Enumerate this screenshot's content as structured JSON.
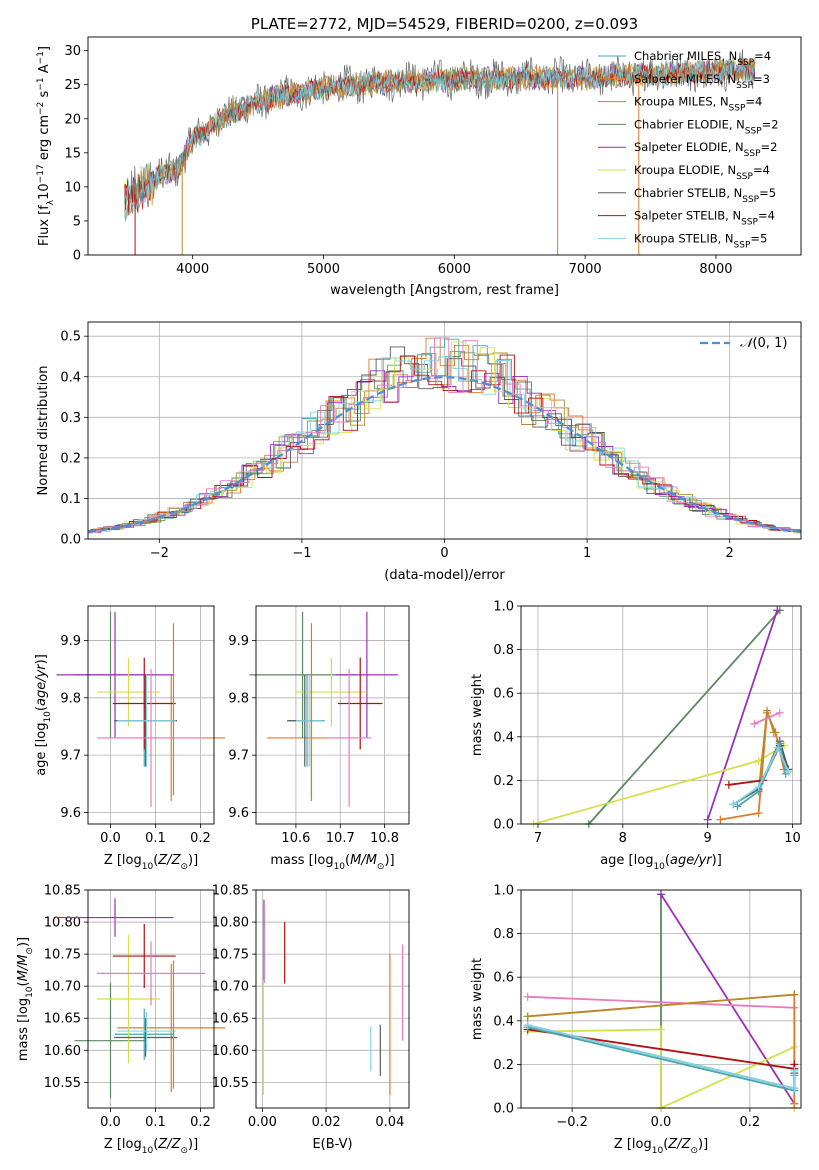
{
  "title": "PLATE=2772, MJD=54529, FIBERID=0200, z=0.093",
  "colors": {
    "Chabrier MILES": "#4aa5ad",
    "Salpeter MILES": "#e07b2d",
    "Kroupa MILES": "#b88a2a",
    "Chabrier ELODIE": "#5a8a60",
    "Salpeter ELODIE": "#9b30b8",
    "Kroupa ELODIE": "#d4e04a",
    "Chabrier STELIB": "#5a5a5a",
    "Salpeter STELIB": "#b01010",
    "Kroupa STELIB": "#80d4e8",
    "pink": "#e87ac0",
    "gaussian": "#4a90d9"
  },
  "chart_data": [
    {
      "id": "spectrum",
      "type": "line",
      "xlabel": "wavelength [Angstrom, rest frame]",
      "ylabel": "Flux [f_λ10^-17 erg cm^-2 s^-1 A^-1]",
      "xlim": [
        3200,
        8650
      ],
      "ylim": [
        0,
        32
      ],
      "xticks": [
        4000,
        5000,
        6000,
        7000,
        8000
      ],
      "yticks": [
        0,
        5,
        10,
        15,
        20,
        25,
        30
      ],
      "grid": false,
      "legend_position": "top-right",
      "legend": [
        {
          "name": "Chabrier MILES",
          "nssp": "4"
        },
        {
          "name": "Salpeter MILES",
          "nssp": "3"
        },
        {
          "name": "Kroupa MILES",
          "nssp": "4"
        },
        {
          "name": "Chabrier ELODIE",
          "nssp": "2"
        },
        {
          "name": "Salpeter ELODIE",
          "nssp": "2"
        },
        {
          "name": "Kroupa ELODIE",
          "nssp": "4"
        },
        {
          "name": "Chabrier STELIB",
          "nssp": "5"
        },
        {
          "name": "Salpeter STELIB",
          "nssp": "4"
        },
        {
          "name": "Kroupa STELIB",
          "nssp": "5"
        }
      ],
      "continuum": [
        [
          3500,
          8
        ],
        [
          3700,
          11
        ],
        [
          3900,
          13
        ],
        [
          4000,
          17
        ],
        [
          4300,
          21
        ],
        [
          4600,
          23
        ],
        [
          5000,
          24.5
        ],
        [
          5500,
          25.5
        ],
        [
          6000,
          25.8
        ],
        [
          6500,
          26
        ],
        [
          7000,
          26
        ],
        [
          7500,
          26.5
        ],
        [
          8000,
          27
        ],
        [
          8300,
          27.2
        ]
      ]
    },
    {
      "id": "residuals",
      "type": "histogram",
      "xlabel": "(data-model)/error",
      "ylabel": "Normed distribution",
      "xlim": [
        -2.5,
        2.5
      ],
      "ylim": [
        0,
        0.535
      ],
      "xticks": [
        -2,
        -1,
        0,
        1,
        2
      ],
      "yticks": [
        0.0,
        0.1,
        0.2,
        0.3,
        0.4,
        0.5
      ],
      "grid": true,
      "legend_position": "top-right",
      "legend": [
        "𝒩(0, 1)"
      ]
    },
    {
      "id": "age-vs-Z",
      "type": "errorbar",
      "xlabel": "Z [log10(Z/Z⊙)]",
      "ylabel": "age  [log10(age/yr)]",
      "xlim": [
        -0.05,
        0.23
      ],
      "ylim": [
        9.58,
        9.96
      ],
      "xticks": [
        0.0,
        0.1,
        0.2
      ],
      "yticks": [
        9.6,
        9.7,
        9.8,
        9.9
      ],
      "grid": true,
      "points": [
        {
          "c": "Chabrier MILES",
          "x": 0.075,
          "xerr": 0.065,
          "y": 9.76,
          "yerr": 0.08
        },
        {
          "c": "Salpeter MILES",
          "x": 0.135,
          "xerr": 0.12,
          "y": 9.73,
          "yerr": 0.11
        },
        {
          "c": "Chabrier ELODIE",
          "x": 0.0,
          "xerr": 0.08,
          "y": 9.84,
          "yerr": 0.11
        },
        {
          "c": "Salpeter ELODIE",
          "x": 0.01,
          "xerr": 0.13,
          "y": 9.84,
          "yerr": 0.11
        },
        {
          "c": "Kroupa ELODIE",
          "x": 0.04,
          "xerr": 0.07,
          "y": 9.81,
          "yerr": 0.06
        },
        {
          "c": "Chabrier STELIB",
          "x": 0.078,
          "xerr": 0.07,
          "y": 9.76,
          "yerr": 0.08
        },
        {
          "c": "Salpeter STELIB",
          "x": 0.075,
          "xerr": 0.07,
          "y": 9.79,
          "yerr": 0.08
        },
        {
          "c": "Kroupa STELIB",
          "x": 0.08,
          "xerr": 0.065,
          "y": 9.76,
          "yerr": 0.08
        },
        {
          "c": "pink",
          "x": 0.09,
          "xerr": 0.12,
          "y": 9.73,
          "yerr": 0.12
        },
        {
          "c": "Kroupa MILES",
          "x": 0.14,
          "xerr": 0.0,
          "y": 9.78,
          "yerr": 0.15
        }
      ]
    },
    {
      "id": "age-vs-mass",
      "type": "errorbar",
      "xlabel": "mass [log10(M/M⊙)]",
      "ylabel": "",
      "xlim": [
        10.51,
        10.855
      ],
      "ylim": [
        9.58,
        9.96
      ],
      "xticks": [
        10.6,
        10.7,
        10.8
      ],
      "yticks": [
        9.6,
        9.7,
        9.8,
        9.9
      ],
      "grid": true,
      "points": [
        {
          "c": "Chabrier MILES",
          "x": 10.625,
          "xerr": 0.04,
          "y": 9.76,
          "yerr": 0.08
        },
        {
          "c": "Salpeter MILES",
          "x": 10.635,
          "xerr": 0.1,
          "y": 9.73,
          "yerr": 0.11
        },
        {
          "c": "Chabrier ELODIE",
          "x": 10.615,
          "xerr": 0.12,
          "y": 9.84,
          "yerr": 0.11
        },
        {
          "c": "Salpeter ELODIE",
          "x": 10.76,
          "xerr": 0.07,
          "y": 9.84,
          "yerr": 0.11
        },
        {
          "c": "Kroupa ELODIE",
          "x": 10.68,
          "xerr": 0.08,
          "y": 9.81,
          "yerr": 0.06
        },
        {
          "c": "Chabrier STELIB",
          "x": 10.62,
          "xerr": 0.04,
          "y": 9.76,
          "yerr": 0.08
        },
        {
          "c": "Salpeter STELIB",
          "x": 10.745,
          "xerr": 0.05,
          "y": 9.79,
          "yerr": 0.08
        },
        {
          "c": "Kroupa STELIB",
          "x": 10.63,
          "xerr": 0.03,
          "y": 9.76,
          "yerr": 0.08
        },
        {
          "c": "pink",
          "x": 10.72,
          "xerr": 0.05,
          "y": 9.73,
          "yerr": 0.12
        },
        {
          "c": "Kroupa MILES",
          "x": 10.635,
          "xerr": 0.0,
          "y": 9.78,
          "yerr": 0.15
        }
      ]
    },
    {
      "id": "weight-vs-age",
      "type": "line",
      "xlabel": "age  [log10(age/yr)]",
      "ylabel": "mass weight",
      "xlim": [
        6.8,
        10.1
      ],
      "ylim": [
        0,
        1.0
      ],
      "xticks": [
        7,
        8,
        9,
        10
      ],
      "yticks": [
        0.0,
        0.2,
        0.4,
        0.6,
        0.8,
        1.0
      ],
      "grid": true,
      "series": [
        {
          "c": "Chabrier ELODIE",
          "x": [
            7.6,
            9.85
          ],
          "y": [
            0.0,
            0.98
          ]
        },
        {
          "c": "Salpeter ELODIE",
          "x": [
            9.0,
            9.82
          ],
          "y": [
            0.02,
            0.98
          ]
        },
        {
          "c": "Kroupa ELODIE",
          "x": [
            6.95,
            9.6,
            9.9
          ],
          "y": [
            0.0,
            0.29,
            0.36
          ]
        },
        {
          "c": "Salpeter MILES",
          "x": [
            9.15,
            9.6,
            9.7,
            9.8,
            9.9
          ],
          "y": [
            0.02,
            0.05,
            0.51,
            0.42,
            0.25
          ]
        },
        {
          "c": "Kroupa MILES",
          "x": [
            9.6,
            9.7,
            9.78
          ],
          "y": [
            0.15,
            0.52,
            0.42
          ]
        },
        {
          "c": "pink",
          "x": [
            9.55,
            9.85
          ],
          "y": [
            0.46,
            0.51
          ]
        },
        {
          "c": "Salpeter STELIB",
          "x": [
            9.25,
            9.65,
            9.85,
            9.95
          ],
          "y": [
            0.18,
            0.2,
            0.36,
            0.25
          ]
        },
        {
          "c": "Chabrier STELIB",
          "x": [
            9.3,
            9.6,
            9.85,
            9.95
          ],
          "y": [
            0.09,
            0.16,
            0.38,
            0.25
          ]
        },
        {
          "c": "Chabrier MILES",
          "x": [
            9.35,
            9.6,
            9.85,
            9.92
          ],
          "y": [
            0.08,
            0.15,
            0.37,
            0.23
          ]
        },
        {
          "c": "Kroupa STELIB",
          "x": [
            9.3,
            9.6,
            9.83,
            9.95
          ],
          "y": [
            0.09,
            0.17,
            0.35,
            0.24
          ]
        }
      ]
    },
    {
      "id": "mass-vs-Z",
      "type": "errorbar",
      "xlabel": "Z [log10(Z/Z⊙)]",
      "ylabel": "mass [log10(M/M⊙)]",
      "xlim": [
        -0.05,
        0.23
      ],
      "ylim": [
        10.51,
        10.85
      ],
      "xticks": [
        0.0,
        0.1,
        0.2
      ],
      "yticks": [
        10.55,
        10.6,
        10.65,
        10.7,
        10.75,
        10.8,
        10.85
      ],
      "grid": true,
      "points": [
        {
          "c": "Chabrier MILES",
          "x": 0.075,
          "xerr": 0.065,
          "y": 10.625,
          "yerr": 0.04
        },
        {
          "c": "Salpeter MILES",
          "x": 0.135,
          "xerr": 0.12,
          "y": 10.635,
          "yerr": 0.1
        },
        {
          "c": "Chabrier ELODIE",
          "x": 0.0,
          "xerr": 0.08,
          "y": 10.615,
          "yerr": 0.09
        },
        {
          "c": "Salpeter ELODIE",
          "x": 0.01,
          "xerr": 0.13,
          "y": 10.807,
          "yerr": 0.03
        },
        {
          "c": "Kroupa ELODIE",
          "x": 0.04,
          "xerr": 0.07,
          "y": 10.68,
          "yerr": 0.1
        },
        {
          "c": "Chabrier STELIB",
          "x": 0.078,
          "xerr": 0.07,
          "y": 10.62,
          "yerr": 0.03
        },
        {
          "c": "Salpeter STELIB",
          "x": 0.075,
          "xerr": 0.07,
          "y": 10.747,
          "yerr": 0.05
        },
        {
          "c": "Kroupa STELIB",
          "x": 0.08,
          "xerr": 0.065,
          "y": 10.63,
          "yerr": 0.03
        },
        {
          "c": "pink",
          "x": 0.09,
          "xerr": 0.12,
          "y": 10.72,
          "yerr": 0.05
        },
        {
          "c": "Kroupa MILES",
          "x": 0.14,
          "xerr": 0.0,
          "y": 10.64,
          "yerr": 0.1
        }
      ]
    },
    {
      "id": "mass-vs-ebv",
      "type": "errorbar",
      "xlabel": "E(B-V)",
      "ylabel": "",
      "xlim": [
        -0.002,
        0.046
      ],
      "ylim": [
        10.51,
        10.85
      ],
      "xticks": [
        0.0,
        0.02,
        0.04
      ],
      "yticks": [
        10.55,
        10.6,
        10.65,
        10.7,
        10.75,
        10.8,
        10.85
      ],
      "grid": true,
      "points": [
        {
          "c": "Salpeter ELODIE",
          "x": 0.0005,
          "xerr": 0.0,
          "y": 10.77,
          "yerr": 0.065
        },
        {
          "c": "Kroupa ELODIE",
          "x": 0.0003,
          "xerr": 0.0,
          "y": 10.62,
          "yerr": 0.09
        },
        {
          "c": "Salpeter STELIB",
          "x": 0.007,
          "xerr": 0.0,
          "y": 10.752,
          "yerr": 0.048
        },
        {
          "c": "Kroupa STELIB",
          "x": 0.034,
          "xerr": 0.0,
          "y": 10.602,
          "yerr": 0.035
        },
        {
          "c": "Chabrier STELIB",
          "x": 0.037,
          "xerr": 0.0,
          "y": 10.6,
          "yerr": 0.04
        },
        {
          "c": "Salpeter MILES",
          "x": 0.04,
          "xerr": 0.0,
          "y": 10.64,
          "yerr": 0.11
        },
        {
          "c": "pink",
          "x": 0.044,
          "xerr": 0.0,
          "y": 10.69,
          "yerr": 0.075
        }
      ]
    },
    {
      "id": "weight-vs-Z",
      "type": "line",
      "xlabel": "Z [log10(Z/Z⊙)]",
      "ylabel": "mass weight",
      "xlim": [
        -0.315,
        0.315
      ],
      "ylim": [
        0,
        1.0
      ],
      "xticks": [
        -0.2,
        0.0,
        0.2
      ],
      "yticks": [
        0.0,
        0.2,
        0.4,
        0.6,
        0.8,
        1.0
      ],
      "grid": true,
      "series": [
        {
          "c": "Chabrier ELODIE",
          "x": [
            0.0,
            0.0
          ],
          "y": [
            0.0,
            0.98
          ]
        },
        {
          "c": "Salpeter ELODIE",
          "x": [
            0.0,
            0.3
          ],
          "y": [
            0.98,
            0.02
          ]
        },
        {
          "c": "Kroupa ELODIE",
          "x": [
            -0.3,
            0.0,
            0.0,
            0.3,
            0.3
          ],
          "y": [
            0.35,
            0.36,
            0.0,
            0.28,
            0.0
          ]
        },
        {
          "c": "pink",
          "x": [
            -0.3,
            0.3
          ],
          "y": [
            0.51,
            0.46
          ]
        },
        {
          "c": "Salpeter MILES",
          "x": [
            -0.3,
            0.3,
            0.3
          ],
          "y": [
            0.42,
            0.52,
            0.02
          ]
        },
        {
          "c": "Kroupa MILES",
          "x": [
            -0.3,
            0.3
          ],
          "y": [
            0.42,
            0.52
          ]
        },
        {
          "c": "Salpeter STELIB",
          "x": [
            -0.3,
            0.3,
            0.3
          ],
          "y": [
            0.36,
            0.18,
            0.2
          ]
        },
        {
          "c": "Chabrier STELIB",
          "x": [
            -0.3,
            0.3,
            0.3
          ],
          "y": [
            0.38,
            0.09,
            0.16
          ]
        },
        {
          "c": "Chabrier MILES",
          "x": [
            -0.3,
            0.3,
            0.3
          ],
          "y": [
            0.37,
            0.08,
            0.15
          ]
        },
        {
          "c": "Kroupa STELIB",
          "x": [
            -0.3,
            0.3,
            0.3
          ],
          "y": [
            0.38,
            0.09,
            0.17
          ]
        }
      ]
    }
  ]
}
